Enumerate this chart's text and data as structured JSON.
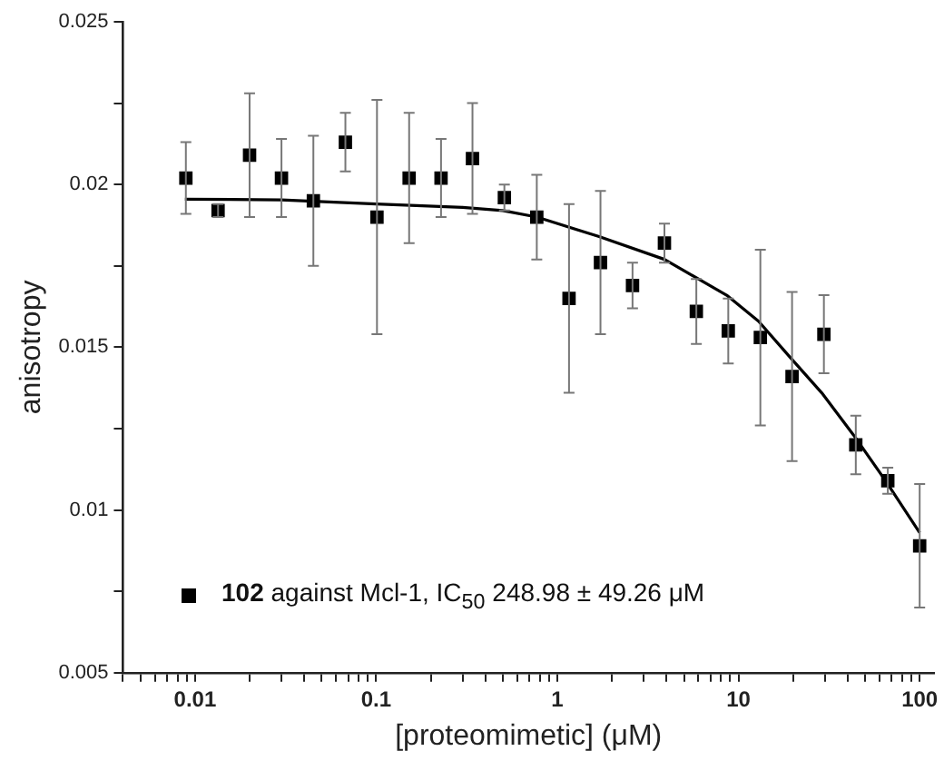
{
  "chart_data": {
    "type": "scatter",
    "xlabel": "[proteomimetic] (μM)",
    "ylabel": "anisotropy",
    "log": "x",
    "xlim": [
      0.004,
      120
    ],
    "ylim": [
      0.005,
      0.025
    ],
    "xticks": [
      {
        "value": 0.004,
        "label": null
      },
      {
        "value": 0.005,
        "label": null
      },
      {
        "value": 0.006,
        "label": null
      },
      {
        "value": 0.007,
        "label": null
      },
      {
        "value": 0.008,
        "label": null
      },
      {
        "value": 0.009,
        "label": null
      },
      0.01,
      {
        "value": 0.02,
        "label": null
      },
      {
        "value": 0.03,
        "label": null
      },
      {
        "value": 0.04,
        "label": null
      },
      {
        "value": 0.05,
        "label": null
      },
      {
        "value": 0.06,
        "label": null
      },
      {
        "value": 0.07,
        "label": null
      },
      {
        "value": 0.08,
        "label": null
      },
      {
        "value": 0.09,
        "label": null
      },
      0.1,
      {
        "value": 0.2,
        "label": null
      },
      {
        "value": 0.3,
        "label": null
      },
      {
        "value": 0.4,
        "label": null
      },
      {
        "value": 0.5,
        "label": null
      },
      {
        "value": 0.6,
        "label": null
      },
      {
        "value": 0.7,
        "label": null
      },
      {
        "value": 0.8,
        "label": null
      },
      {
        "value": 0.9,
        "label": null
      },
      1,
      {
        "value": 2,
        "label": null
      },
      {
        "value": 3,
        "label": null
      },
      {
        "value": 4,
        "label": null
      },
      {
        "value": 5,
        "label": null
      },
      {
        "value": 6,
        "label": null
      },
      {
        "value": 7,
        "label": null
      },
      {
        "value": 8,
        "label": null
      },
      {
        "value": 9,
        "label": null
      },
      10,
      {
        "value": 20,
        "label": null
      },
      {
        "value": 30,
        "label": null
      },
      {
        "value": 40,
        "label": null
      },
      {
        "value": 50,
        "label": null
      },
      {
        "value": 60,
        "label": null
      },
      {
        "value": 70,
        "label": null
      },
      {
        "value": 80,
        "label": null
      },
      {
        "value": 90,
        "label": null
      },
      100
    ],
    "yticks": [
      0.005,
      {
        "value": 0.0075,
        "label": null
      },
      0.01,
      {
        "value": 0.0125,
        "label": null
      },
      0.015,
      {
        "value": 0.0175,
        "label": null
      },
      0.02,
      {
        "value": 0.0225,
        "label": null
      },
      0.025
    ],
    "grid": false,
    "legend": "bottom left",
    "marker": "square",
    "series": [
      {
        "name": "102 against Mcl-1, IC$_{50}$ 248.98 ± 49.26 μM",
        "color": "#000000",
        "x": [
          0.0089,
          0.0134,
          0.02,
          0.03,
          0.045,
          0.0676,
          0.101,
          0.152,
          0.228,
          0.34,
          0.51,
          0.77,
          1.16,
          1.73,
          2.6,
          3.9,
          5.85,
          8.78,
          13.2,
          19.75,
          29.6,
          44.4,
          66.7,
          100
        ],
        "values": [
          0.0202,
          0.0192,
          0.0209,
          0.0202,
          0.0195,
          0.0213,
          0.019,
          0.0202,
          0.0202,
          0.0208,
          0.0196,
          0.019,
          0.0165,
          0.0176,
          0.0169,
          0.0182,
          0.0161,
          0.0155,
          0.0153,
          0.0141,
          0.0154,
          0.012,
          0.0109,
          0.0089
        ],
        "errors": [
          0.0011,
          0.0002,
          0.0019,
          0.0012,
          0.002,
          0.0009,
          0.0036,
          0.002,
          0.0012,
          0.0017,
          0.0004,
          0.0013,
          0.0029,
          0.0022,
          0.0007,
          0.0006,
          0.001,
          0.001,
          0.0027,
          0.0026,
          0.0012,
          0.0009,
          0.0004,
          0.0019
        ]
      },
      {
        "type": "line",
        "color": "#000000",
        "marker": "none",
        "x": [
          0.0088,
          0.03,
          0.1,
          0.3,
          0.5,
          0.77,
          1.7,
          3.9,
          8.6,
          12.9,
          19.2,
          28.8,
          43.2,
          64.8,
          100
        ],
        "values": [
          0.01955,
          0.01953,
          0.0194,
          0.0193,
          0.0192,
          0.019,
          0.0184,
          0.0177,
          0.0166,
          0.0158,
          0.0147,
          0.0136,
          0.0123,
          0.0109,
          0.0093
        ]
      }
    ]
  }
}
